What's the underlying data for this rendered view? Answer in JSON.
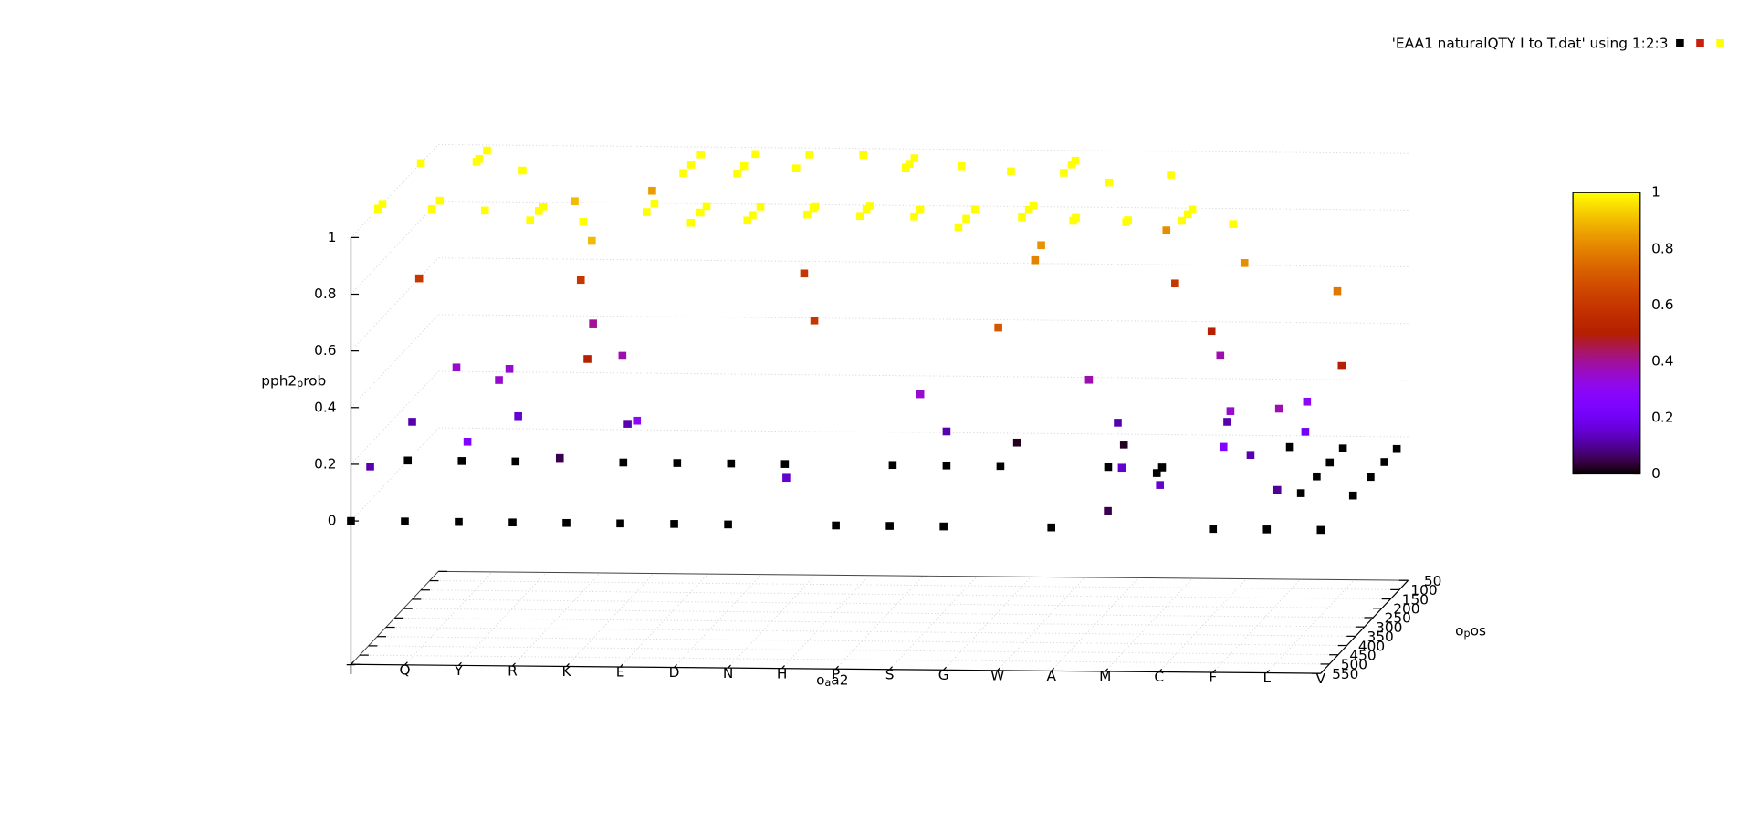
{
  "chart_data": {
    "type": "scatter3d",
    "x_label": [
      "o",
      "a",
      "a2"
    ],
    "y_label": [
      "o",
      "p",
      "os"
    ],
    "z_label": [
      "pph2",
      "p",
      "rob"
    ],
    "categories": [
      "T",
      "Q",
      "Y",
      "R",
      "K",
      "E",
      "D",
      "N",
      "H",
      "P",
      "S",
      "G",
      "W",
      "A",
      "M",
      "C",
      "F",
      "L",
      "V"
    ],
    "ylim": [
      50,
      550
    ],
    "yticks": [
      50,
      100,
      150,
      200,
      250,
      300,
      350,
      400,
      450,
      500,
      550
    ],
    "zlim": [
      0,
      1
    ],
    "zticks": [
      0,
      0.2,
      0.4,
      0.6,
      0.8,
      1
    ],
    "cblim": [
      0,
      1
    ],
    "cbticks": [
      0,
      0.2,
      0.4,
      0.6,
      0.8,
      1
    ],
    "grid": true,
    "legend_position": "top-right",
    "series": [
      {
        "name": "'EAA1 naturalQTY I to T.dat' using 1:2:3",
        "key_colors": [
          "#000000",
          "#c8200e",
          "#ffff00"
        ],
        "x": [
          "T",
          "Q",
          "Y",
          "R",
          "K",
          "E",
          "D",
          "N",
          "P",
          "S",
          "G",
          "A",
          "F",
          "L",
          "V",
          "T",
          "Q",
          "Y",
          "K",
          "E",
          "D",
          "N",
          "P",
          "S",
          "G",
          "A",
          "M",
          "H",
          "R",
          "T",
          "Q",
          "Q",
          "Q",
          "Y",
          "E",
          "E",
          "E",
          "D",
          "D",
          "D",
          "N",
          "N",
          "H",
          "P",
          "P",
          "P",
          "S",
          "G",
          "W",
          "W",
          "W",
          "A",
          "M",
          "T",
          "T",
          "Q",
          "Q",
          "Y",
          "R",
          "R",
          "R",
          "K",
          "E",
          "E",
          "D",
          "D",
          "D",
          "N",
          "N",
          "N",
          "H",
          "H",
          "H",
          "P",
          "P",
          "P",
          "S",
          "S",
          "G",
          "G",
          "G",
          "W",
          "W",
          "W",
          "A",
          "A",
          "M",
          "M",
          "C",
          "C",
          "C",
          "F",
          "K",
          "R",
          "K",
          "T",
          "R",
          "R",
          "K",
          "Q",
          "Y",
          "Y",
          "T",
          "T",
          "Y",
          "Y",
          "K",
          "K",
          "E",
          "N",
          "H",
          "S",
          "S",
          "W",
          "W",
          "W",
          "G",
          "A",
          "A",
          "A",
          "M",
          "M",
          "M",
          "C",
          "M",
          "M",
          "C",
          "C",
          "F",
          "C",
          "F",
          "F",
          "F",
          "L",
          "L",
          "L",
          "F",
          "L",
          "L",
          "L",
          "L",
          "L",
          "V",
          "V",
          "V",
          "V",
          "V",
          "V"
        ],
        "y": [
          550,
          550,
          550,
          550,
          550,
          550,
          550,
          550,
          550,
          550,
          550,
          550,
          550,
          550,
          550,
          225,
          225,
          225,
          225,
          225,
          225,
          225,
          225,
          225,
          225,
          225,
          225,
          525,
          280,
          150,
          140,
          125,
          80,
          185,
          145,
          90,
          190,
          150,
          85,
          190,
          160,
          85,
          85,
          150,
          100,
          130,
          140,
          165,
          170,
          105,
          125,
          220,
          175,
          395,
          370,
          395,
          350,
          400,
          400,
          375,
          450,
          455,
          400,
          355,
          400,
          365,
          455,
          410,
          365,
          440,
          405,
          370,
          360,
          410,
          375,
          355,
          410,
          375,
          420,
          370,
          465,
          410,
          370,
          345,
          425,
          410,
          420,
          430,
          420,
          385,
          360,
          435,
          405,
          195,
          60,
          160,
          160,
          90,
          430,
          255,
          320,
          260,
          200,
          440,
          500,
          210,
          230,
          200,
          455,
          115,
          365,
          375,
          225,
          545,
          335,
          300,
          130,
          335,
          170,
          135,
          535,
          455,
          255,
          545,
          200,
          150,
          250,
          200,
          450,
          160,
          490,
          370,
          335,
          330,
          480,
          320,
          110,
          490,
          355,
          265,
          190,
          115,
          455,
          430,
          365,
          265,
          185,
          115
        ],
        "z": [
          0,
          0,
          0,
          0,
          0,
          0,
          0,
          0,
          0,
          0,
          0,
          0,
          0,
          0,
          0,
          0,
          0,
          0,
          0,
          0,
          0,
          0,
          0,
          0,
          0,
          0,
          0,
          0.15,
          0.05,
          1,
          1,
          1,
          1,
          1,
          1,
          1,
          1,
          1,
          1,
          1,
          1,
          1,
          1,
          1,
          1,
          1,
          1,
          1,
          1,
          1,
          1,
          1,
          1,
          1,
          1,
          1,
          1,
          1,
          1,
          1,
          1,
          1,
          1,
          1,
          1,
          1,
          1,
          1,
          1,
          1,
          1,
          1,
          1,
          1,
          1,
          1,
          1,
          1,
          1,
          1,
          1,
          1,
          1,
          1,
          1,
          1,
          1,
          1,
          1,
          1,
          1,
          1,
          0.9,
          0.9,
          0.85,
          0.6,
          0.6,
          0.4,
          0.5,
          0.35,
          0.35,
          0.35,
          0.12,
          0.12,
          0.25,
          0.15,
          0.38,
          0.12,
          0.3,
          0.6,
          0.6,
          0.35,
          0.12,
          0.7,
          0.8,
          0.83,
          0.02,
          0.38,
          0.12,
          0.02,
          0.05,
          0.15,
          0,
          0.15,
          0.82,
          0.6,
          0.5,
          0.38,
          0.35,
          0.12,
          0.25,
          0.82,
          0.12,
          0.2,
          0.38,
          0.3,
          0,
          0.1,
          0,
          0,
          0,
          0,
          0.78,
          0.5,
          0,
          0,
          0,
          0
        ]
      }
    ]
  }
}
